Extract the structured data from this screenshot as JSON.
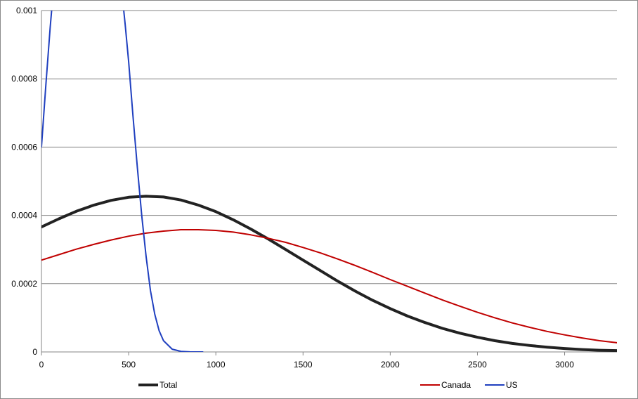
{
  "chart_data": {
    "type": "line",
    "title": "",
    "xlabel": "",
    "ylabel": "",
    "xlim": [
      0,
      3300
    ],
    "ylim": [
      0,
      0.001
    ],
    "x_ticks": [
      0,
      500,
      1000,
      1500,
      2000,
      2500,
      3000
    ],
    "x_tick_labels": [
      "0",
      "500",
      "1000",
      "1500",
      "2000",
      "2500",
      "3000"
    ],
    "y_ticks": [
      0,
      0.0002,
      0.0004,
      0.0006,
      0.0008,
      0.001
    ],
    "y_tick_labels": [
      "0",
      "0.0002",
      "0.0004",
      "0.0006",
      "0.0008",
      "0.001"
    ],
    "grid": "horizontal",
    "legend_position": "bottom",
    "series": [
      {
        "name": "Total",
        "color": "#222222",
        "x": [
          0,
          100,
          200,
          300,
          400,
          500,
          600,
          700,
          800,
          900,
          1000,
          1100,
          1200,
          1300,
          1400,
          1500,
          1600,
          1700,
          1800,
          1900,
          2000,
          2100,
          2200,
          2300,
          2400,
          2500,
          2600,
          2700,
          2800,
          2900,
          3000,
          3100,
          3200,
          3300
        ],
        "values": [
          0.000366,
          0.00039,
          0.000412,
          0.00043,
          0.000444,
          0.000453,
          0.000456,
          0.000454,
          0.000445,
          0.00043,
          0.000411,
          0.000387,
          0.00036,
          0.000331,
          0.0003,
          0.000269,
          0.000238,
          0.000207,
          0.000178,
          0.000151,
          0.000127,
          0.000105,
          8.6e-05,
          6.9e-05,
          5.5e-05,
          4.3e-05,
          3.3e-05,
          2.5e-05,
          1.9e-05,
          1.4e-05,
          1e-05,
          7e-06,
          5e-06,
          4e-06
        ]
      },
      {
        "name": "Canada",
        "color": "#c00000",
        "x": [
          0,
          100,
          200,
          300,
          400,
          500,
          600,
          700,
          800,
          900,
          1000,
          1100,
          1200,
          1300,
          1400,
          1500,
          1600,
          1700,
          1800,
          1900,
          2000,
          2100,
          2200,
          2300,
          2400,
          2500,
          2600,
          2700,
          2800,
          2900,
          3000,
          3100,
          3200,
          3300
        ],
        "values": [
          0.000269,
          0.000285,
          0.000301,
          0.000315,
          0.000328,
          0.000339,
          0.000348,
          0.000354,
          0.000358,
          0.000358,
          0.000356,
          0.000351,
          0.000343,
          0.000333,
          0.000321,
          0.000306,
          0.00029,
          0.000272,
          0.000253,
          0.000233,
          0.000212,
          0.000192,
          0.000172,
          0.000152,
          0.000134,
          0.000116,
          0.0001,
          8.5e-05,
          7.2e-05,
          6e-05,
          5e-05,
          4.1e-05,
          3.3e-05,
          2.7e-05
        ]
      },
      {
        "name": "US",
        "color": "#1f3fbf",
        "x": [
          0,
          25,
          50,
          60,
          470,
          480,
          500,
          525,
          550,
          575,
          600,
          625,
          650,
          675,
          700,
          750,
          800,
          850,
          900,
          925
        ],
        "values": [
          0.0006,
          0.00078,
          0.00095,
          0.00101,
          0.00101,
          0.00096,
          0.00085,
          0.00069,
          0.00054,
          0.0004,
          0.00028,
          0.00018,
          0.00011,
          6.2e-05,
          3.3e-05,
          8e-06,
          1.6e-06,
          3e-07,
          5e-08,
          0.0
        ]
      }
    ]
  }
}
